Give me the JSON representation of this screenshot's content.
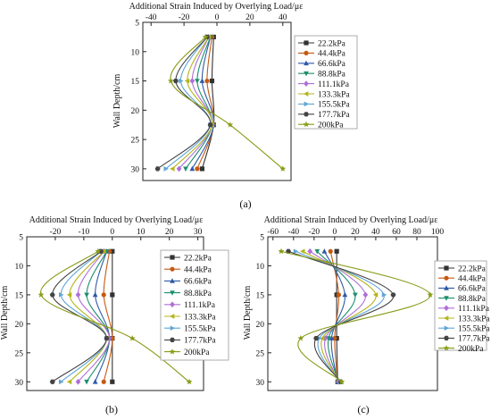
{
  "chart_data": [
    {
      "type": "line",
      "panel_label": "(a)",
      "xlabel": "Additional Strain Induced by Overlying Load/με",
      "ylabel": "Wall Depth/cm",
      "xlim": [
        -45,
        45
      ],
      "xticks": [
        -40,
        -20,
        0,
        20,
        40
      ],
      "ylim": [
        5,
        32
      ],
      "yticks": [
        5,
        10,
        15,
        20,
        25,
        30
      ],
      "y_inverted": true,
      "x_axis_position": "top",
      "grid": false,
      "legend_position": "top-right",
      "series": [
        {
          "name": "22.2kPa",
          "color": "#333333",
          "marker": "square",
          "x": [
            -2,
            -3,
            -2,
            -9
          ],
          "y": [
            7.5,
            15,
            22.5,
            30
          ]
        },
        {
          "name": "44.4kPa",
          "color": "#c55a11",
          "marker": "circle",
          "x": [
            -3,
            -6,
            -2,
            -12
          ],
          "y": [
            7.5,
            15,
            22.5,
            30
          ]
        },
        {
          "name": "66.6kPa",
          "color": "#2e5aa8",
          "marker": "triangle-up",
          "x": [
            -4,
            -9,
            -2,
            -15
          ],
          "y": [
            7.5,
            15,
            22.5,
            30
          ]
        },
        {
          "name": "88.8kPa",
          "color": "#1e8f6e",
          "marker": "triangle-down",
          "x": [
            -4,
            -12,
            -3,
            -19
          ],
          "y": [
            7.5,
            15,
            22.5,
            30
          ]
        },
        {
          "name": "111.1kPa",
          "color": "#b06fd8",
          "marker": "diamond",
          "x": [
            -5,
            -15,
            -3,
            -23
          ],
          "y": [
            7.5,
            15,
            22.5,
            30
          ]
        },
        {
          "name": "133.3kPa",
          "color": "#b5b51b",
          "marker": "triangle-left",
          "x": [
            -5,
            -18,
            -3,
            -27
          ],
          "y": [
            7.5,
            15,
            22.5,
            30
          ]
        },
        {
          "name": "155.5kPa",
          "color": "#5fa6d6",
          "marker": "triangle-right",
          "x": [
            -6,
            -22,
            -4,
            -31
          ],
          "y": [
            7.5,
            15,
            22.5,
            30
          ]
        },
        {
          "name": "177.7kPa",
          "color": "#444444",
          "marker": "hexagon",
          "x": [
            -6,
            -25,
            -4,
            -36
          ],
          "y": [
            7.5,
            15,
            22.5,
            30
          ]
        },
        {
          "name": "200kPa",
          "color": "#8a9b17",
          "marker": "star",
          "x": [
            -7,
            -28,
            8,
            40
          ],
          "y": [
            7.5,
            15,
            22.5,
            30
          ]
        }
      ]
    },
    {
      "type": "line",
      "panel_label": "(b)",
      "xlabel": "Additional Strain Induced by Overlying Load/με",
      "ylabel": "Wall Depth/cm",
      "xlim": [
        -30,
        32
      ],
      "xticks": [
        -20,
        -10,
        0,
        10,
        20,
        30
      ],
      "ylim": [
        5,
        31.5
      ],
      "yticks": [
        5,
        10,
        15,
        20,
        25,
        30
      ],
      "y_inverted": true,
      "x_axis_position": "top",
      "grid": false,
      "legend_position": "right",
      "series": [
        {
          "name": "22.2kPa",
          "color": "#333333",
          "marker": "square",
          "x": [
            0,
            0,
            0,
            0
          ],
          "y": [
            7.5,
            15,
            22.5,
            30
          ]
        },
        {
          "name": "44.4kPa",
          "color": "#c55a11",
          "marker": "circle",
          "x": [
            -1,
            -3,
            0,
            -3
          ],
          "y": [
            7.5,
            15,
            22.5,
            30
          ]
        },
        {
          "name": "66.6kPa",
          "color": "#2e5aa8",
          "marker": "triangle-up",
          "x": [
            -2,
            -6,
            -1,
            -6
          ],
          "y": [
            7.5,
            15,
            22.5,
            30
          ]
        },
        {
          "name": "88.8kPa",
          "color": "#1e8f6e",
          "marker": "triangle-down",
          "x": [
            -2,
            -9,
            -1,
            -9
          ],
          "y": [
            7.5,
            15,
            22.5,
            30
          ]
        },
        {
          "name": "111.1kPa",
          "color": "#b06fd8",
          "marker": "diamond",
          "x": [
            -3,
            -12,
            -1,
            -12
          ],
          "y": [
            7.5,
            15,
            22.5,
            30
          ]
        },
        {
          "name": "133.3kPa",
          "color": "#b5b51b",
          "marker": "triangle-left",
          "x": [
            -3,
            -15,
            -2,
            -15
          ],
          "y": [
            7.5,
            15,
            22.5,
            30
          ]
        },
        {
          "name": "155.5kPa",
          "color": "#5fa6d6",
          "marker": "triangle-right",
          "x": [
            -4,
            -18,
            -2,
            -18
          ],
          "y": [
            7.5,
            15,
            22.5,
            30
          ]
        },
        {
          "name": "177.7kPa",
          "color": "#444444",
          "marker": "hexagon",
          "x": [
            -4,
            -21,
            -2,
            -21
          ],
          "y": [
            7.5,
            15,
            22.5,
            30
          ]
        },
        {
          "name": "200kPa",
          "color": "#8a9b17",
          "marker": "star",
          "x": [
            -5,
            -25,
            7,
            27
          ],
          "y": [
            7.5,
            15,
            22.5,
            30
          ]
        }
      ]
    },
    {
      "type": "line",
      "panel_label": "(c)",
      "xlabel": "Additional Strain Induced by Overlying Load/με",
      "ylabel": "Wall Depth/cm",
      "xlim": [
        -65,
        100
      ],
      "xticks": [
        -60,
        -40,
        -20,
        0,
        20,
        40,
        60,
        80,
        100
      ],
      "ylim": [
        5,
        31.5
      ],
      "yticks": [
        5,
        10,
        15,
        20,
        25,
        30
      ],
      "y_inverted": true,
      "x_axis_position": "top",
      "grid": false,
      "legend_position": "right",
      "series": [
        {
          "name": "22.2kPa",
          "color": "#333333",
          "marker": "square",
          "x": [
            2,
            2,
            2,
            3
          ],
          "y": [
            7.5,
            15,
            22.5,
            30
          ]
        },
        {
          "name": "44.4kPa",
          "color": "#c55a11",
          "marker": "circle",
          "x": [
            -4,
            4,
            0,
            3
          ],
          "y": [
            7.5,
            15,
            22.5,
            30
          ]
        },
        {
          "name": "66.6kPa",
          "color": "#2e5aa8",
          "marker": "triangle-up",
          "x": [
            -10,
            10,
            -3,
            3
          ],
          "y": [
            7.5,
            15,
            22.5,
            30
          ]
        },
        {
          "name": "88.8kPa",
          "color": "#1e8f6e",
          "marker": "triangle-down",
          "x": [
            -17,
            20,
            -6,
            4
          ],
          "y": [
            7.5,
            15,
            22.5,
            30
          ]
        },
        {
          "name": "111.1kPa",
          "color": "#b06fd8",
          "marker": "diamond",
          "x": [
            -24,
            30,
            -9,
            4
          ],
          "y": [
            7.5,
            15,
            22.5,
            30
          ]
        },
        {
          "name": "133.3kPa",
          "color": "#b5b51b",
          "marker": "triangle-left",
          "x": [
            -31,
            40,
            -12,
            5
          ],
          "y": [
            7.5,
            15,
            22.5,
            30
          ]
        },
        {
          "name": "155.5kPa",
          "color": "#5fa6d6",
          "marker": "triangle-right",
          "x": [
            -38,
            48,
            -15,
            5
          ],
          "y": [
            7.5,
            15,
            22.5,
            30
          ]
        },
        {
          "name": "177.7kPa",
          "color": "#444444",
          "marker": "hexagon",
          "x": [
            -45,
            57,
            -18,
            6
          ],
          "y": [
            7.5,
            15,
            22.5,
            30
          ]
        },
        {
          "name": "200kPa",
          "color": "#8a9b17",
          "marker": "star",
          "x": [
            -52,
            93,
            -33,
            7
          ],
          "y": [
            7.5,
            15,
            22.5,
            30
          ]
        }
      ]
    }
  ]
}
